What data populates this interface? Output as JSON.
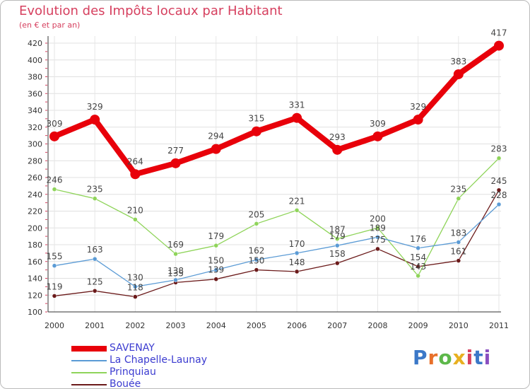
{
  "title": "Evolution des Impôts locaux par Habitant",
  "subtitle": "(en € et par an)",
  "logo": "Proxiti",
  "chart_data": {
    "type": "line",
    "title": "Evolution des Impôts locaux par Habitant",
    "ylabel": "(en € et par an)",
    "xlabel": "",
    "x": [
      "2000",
      "2001",
      "2002",
      "2003",
      "2004",
      "2005",
      "2006",
      "2007",
      "2008",
      "2009",
      "2010",
      "2011"
    ],
    "ylim": [
      100,
      420
    ],
    "yticks": [
      100,
      120,
      140,
      160,
      180,
      200,
      220,
      240,
      260,
      280,
      300,
      320,
      340,
      360,
      380,
      400,
      420
    ],
    "grid": true,
    "legend": "bottom-left",
    "series": [
      {
        "name": "SAVENAY",
        "color": "#e8000a",
        "values": [
          309,
          329,
          264,
          277,
          294,
          315,
          331,
          293,
          309,
          329,
          383,
          417
        ]
      },
      {
        "name": "La Chapelle-Launay",
        "color": "#5b9bd5",
        "values": [
          155,
          163,
          130,
          138,
          150,
          162,
          170,
          179,
          189,
          176,
          183,
          228
        ]
      },
      {
        "name": "Prinquiau",
        "color": "#8fd45a",
        "values": [
          246,
          235,
          210,
          169,
          179,
          205,
          221,
          187,
          200,
          143,
          235,
          283
        ]
      },
      {
        "name": "Bouée",
        "color": "#6b1a1a",
        "values": [
          119,
          125,
          118,
          135,
          139,
          150,
          148,
          158,
          175,
          154,
          161,
          245
        ]
      }
    ],
    "data_labels": [
      [
        "309",
        "329",
        "264",
        "277",
        "294",
        "315",
        "331",
        "293",
        "309",
        "329",
        "383",
        "417"
      ],
      [
        "155",
        "163",
        "130",
        "138",
        "150",
        "162",
        "170",
        "179",
        "189",
        "176",
        "183",
        "228"
      ],
      [
        "246",
        "235",
        "210",
        "169",
        "179",
        "205",
        "221",
        "187",
        "200",
        "143",
        "235",
        "283"
      ],
      [
        "119",
        "125",
        "118",
        "135",
        "139",
        "150",
        "148",
        "158",
        "175",
        "154",
        "161",
        "245"
      ]
    ]
  }
}
